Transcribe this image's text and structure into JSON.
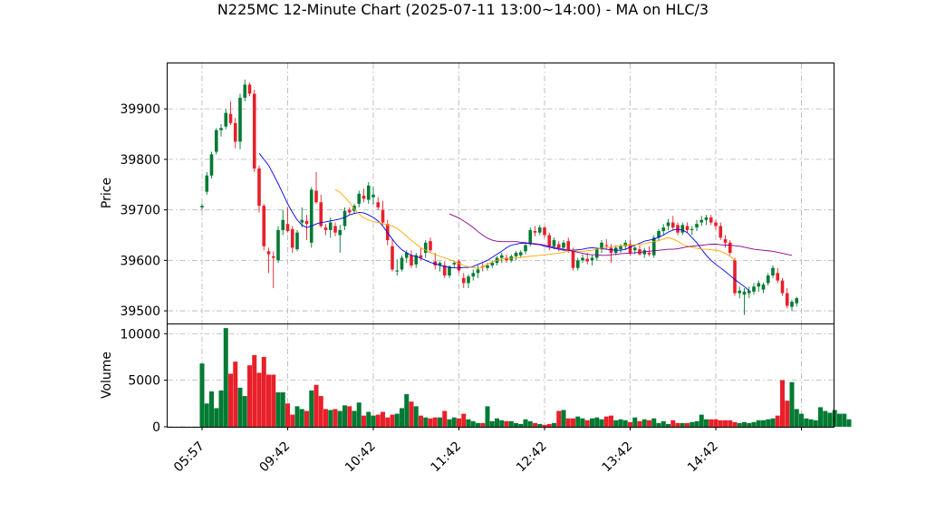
{
  "chart_data": {
    "type": "candlestick",
    "title": "N225MC 12-Minute Chart (2025-07-11 13:00~14:00) - MA on HLC/3",
    "price_panel": {
      "ylabel": "Price",
      "ylim": [
        39475,
        39990
      ],
      "yticks": [
        39500,
        39600,
        39700,
        39800,
        39900
      ]
    },
    "volume_panel": {
      "ylabel": "Volume",
      "ylim": [
        0,
        11000
      ],
      "yticks": [
        0,
        5000,
        10000
      ],
      "yticklabels": [
        "0",
        "5000",
        "10000"
      ]
    },
    "x_ticks": [
      {
        "label": "05:57",
        "index": 0
      },
      {
        "label": "09:42",
        "index": 18
      },
      {
        "label": "10:42",
        "index": 36
      },
      {
        "label": "11:42",
        "index": 54
      },
      {
        "label": "12:42",
        "index": 72
      },
      {
        "label": "13:42",
        "index": 90
      },
      {
        "label": "14:42",
        "index": 108
      },
      {
        "label": "",
        "index": 126
      }
    ],
    "colors": {
      "up": "#007a33",
      "down": "#e8202a",
      "ma_short": "#0000ee",
      "ma_mid": "#ffa500",
      "ma_long": "#8b008b"
    },
    "candles_note": "OHLC per 12-minute bar, approximate readings",
    "ohlc": [
      [
        39705,
        39712,
        39700,
        39708
      ],
      [
        39736,
        39775,
        39730,
        39768
      ],
      [
        39768,
        39815,
        39762,
        39810
      ],
      [
        39815,
        39862,
        39810,
        39858
      ],
      [
        39858,
        39870,
        39845,
        39862
      ],
      [
        39865,
        39900,
        39860,
        39892
      ],
      [
        39890,
        39915,
        39868,
        39872
      ],
      [
        39872,
        39882,
        39822,
        39835
      ],
      [
        39835,
        39930,
        39820,
        39922
      ],
      [
        39922,
        39958,
        39915,
        39948
      ],
      [
        39948,
        39952,
        39925,
        39930
      ],
      [
        39930,
        39938,
        39775,
        39782
      ],
      [
        39782,
        39788,
        39695,
        39708
      ],
      [
        39708,
        39712,
        39620,
        39628
      ],
      [
        39618,
        39625,
        39575,
        39612
      ],
      [
        39608,
        39618,
        39545,
        39605
      ],
      [
        39600,
        39668,
        39595,
        39660
      ],
      [
        39660,
        39700,
        39650,
        39680
      ],
      [
        39672,
        39705,
        39655,
        39658
      ],
      [
        39662,
        39668,
        39615,
        39625
      ],
      [
        39622,
        39660,
        39618,
        39655
      ],
      [
        39675,
        39705,
        39665,
        39680
      ],
      [
        39678,
        39690,
        39640,
        39672
      ],
      [
        39635,
        39745,
        39625,
        39740
      ],
      [
        39738,
        39775,
        39712,
        39715
      ],
      [
        39715,
        39730,
        39665,
        39668
      ],
      [
        39665,
        39672,
        39650,
        39660
      ],
      [
        39660,
        39685,
        39645,
        39675
      ],
      [
        39668,
        39675,
        39648,
        39655
      ],
      [
        39650,
        39670,
        39615,
        39660
      ],
      [
        39668,
        39705,
        39660,
        39698
      ],
      [
        39700,
        39705,
        39690,
        39695
      ],
      [
        39698,
        39712,
        39692,
        39708
      ],
      [
        39712,
        39738,
        39705,
        39732
      ],
      [
        39728,
        39742,
        39715,
        39722
      ],
      [
        39720,
        39755,
        39712,
        39748
      ],
      [
        39725,
        39745,
        39710,
        39730
      ],
      [
        39715,
        39725,
        39700,
        39705
      ],
      [
        39700,
        39718,
        39670,
        39675
      ],
      [
        39672,
        39680,
        39630,
        39640
      ],
      [
        39628,
        39642,
        39578,
        39582
      ],
      [
        39578,
        39602,
        39570,
        39580
      ],
      [
        39582,
        39610,
        39578,
        39605
      ],
      [
        39605,
        39620,
        39595,
        39615
      ],
      [
        39610,
        39620,
        39585,
        39590
      ],
      [
        39592,
        39615,
        39585,
        39610
      ],
      [
        39610,
        39625,
        39600,
        39605
      ],
      [
        39615,
        39640,
        39605,
        39635
      ],
      [
        39638,
        39645,
        39615,
        39620
      ],
      [
        39598,
        39615,
        39582,
        39590
      ],
      [
        39590,
        39598,
        39578,
        39595
      ],
      [
        39590,
        39598,
        39565,
        39570
      ],
      [
        39570,
        39590,
        39565,
        39588
      ],
      [
        39592,
        39598,
        39585,
        39595
      ],
      [
        39598,
        39602,
        39575,
        39580
      ],
      [
        39565,
        39575,
        39545,
        39555
      ],
      [
        39555,
        39572,
        39545,
        39568
      ],
      [
        39568,
        39582,
        39560,
        39575
      ],
      [
        39575,
        39590,
        39565,
        39582
      ],
      [
        39588,
        39595,
        39578,
        39586
      ],
      [
        39585,
        39595,
        39580,
        39590
      ],
      [
        39590,
        39600,
        39585,
        39595
      ],
      [
        39595,
        39608,
        39590,
        39605
      ],
      [
        39605,
        39615,
        39595,
        39610
      ],
      [
        39605,
        39612,
        39595,
        39600
      ],
      [
        39600,
        39612,
        39596,
        39608
      ],
      [
        39608,
        39618,
        39600,
        39615
      ],
      [
        39610,
        39620,
        39605,
        39616
      ],
      [
        39618,
        39635,
        39612,
        39630
      ],
      [
        39632,
        39665,
        39628,
        39660
      ],
      [
        39658,
        39668,
        39648,
        39655
      ],
      [
        39655,
        39670,
        39650,
        39665
      ],
      [
        39665,
        39668,
        39645,
        39650
      ],
      [
        39650,
        39655,
        39620,
        39628
      ],
      [
        39628,
        39645,
        39622,
        39640
      ],
      [
        39632,
        39638,
        39618,
        39625
      ],
      [
        39625,
        39640,
        39620,
        39635
      ],
      [
        39638,
        39645,
        39615,
        39620
      ],
      [
        39620,
        39625,
        39580,
        39585
      ],
      [
        39585,
        39605,
        39580,
        39600
      ],
      [
        39600,
        39612,
        39595,
        39605
      ],
      [
        39603,
        39615,
        39592,
        39598
      ],
      [
        39600,
        39610,
        39590,
        39605
      ],
      [
        39605,
        39625,
        39600,
        39622
      ],
      [
        39622,
        39640,
        39615,
        39635
      ],
      [
        39630,
        39642,
        39622,
        39628
      ],
      [
        39625,
        39632,
        39595,
        39615
      ],
      [
        39615,
        39630,
        39610,
        39625
      ],
      [
        39622,
        39632,
        39615,
        39628
      ],
      [
        39628,
        39640,
        39620,
        39635
      ],
      [
        39632,
        39640,
        39610,
        39615
      ],
      [
        39620,
        39628,
        39612,
        39625
      ],
      [
        39622,
        39630,
        39610,
        39612
      ],
      [
        39612,
        39625,
        39605,
        39620
      ],
      [
        39615,
        39628,
        39608,
        39612
      ],
      [
        39610,
        39650,
        39605,
        39645
      ],
      [
        39645,
        39662,
        39638,
        39658
      ],
      [
        39658,
        39672,
        39650,
        39665
      ],
      [
        39668,
        39682,
        39660,
        39675
      ],
      [
        39675,
        39688,
        39660,
        39665
      ],
      [
        39670,
        39675,
        39650,
        39655
      ],
      [
        39655,
        39675,
        39650,
        39670
      ],
      [
        39668,
        39675,
        39655,
        39660
      ],
      [
        39660,
        39668,
        39650,
        39662
      ],
      [
        39665,
        39680,
        39658,
        39672
      ],
      [
        39675,
        39688,
        39668,
        39680
      ],
      [
        39680,
        39690,
        39670,
        39685
      ],
      [
        39685,
        39690,
        39670,
        39675
      ],
      [
        39675,
        39680,
        39660,
        39668
      ],
      [
        39668,
        39675,
        39640,
        39645
      ],
      [
        39642,
        39650,
        39625,
        39635
      ],
      [
        39635,
        39640,
        39610,
        39615
      ],
      [
        39600,
        39605,
        39530,
        39535
      ],
      [
        39535,
        39548,
        39525,
        39540
      ],
      [
        39532,
        39545,
        39492,
        39538
      ],
      [
        39535,
        39548,
        39525,
        39540
      ],
      [
        39538,
        39555,
        39532,
        39548
      ],
      [
        39548,
        39560,
        39538,
        39555
      ],
      [
        39542,
        39556,
        39535,
        39552
      ],
      [
        39555,
        39575,
        39550,
        39570
      ],
      [
        39570,
        39590,
        39565,
        39585
      ],
      [
        39575,
        39585,
        39555,
        39560
      ],
      [
        39560,
        39565,
        39530,
        39535
      ],
      [
        39535,
        39545,
        39505,
        39510
      ],
      [
        39508,
        39522,
        39500,
        39518
      ],
      [
        39515,
        39528,
        39508,
        39525
      ]
    ],
    "volume": [
      6800,
      2500,
      3800,
      2000,
      3900,
      10600,
      5700,
      7000,
      4200,
      3300,
      6600,
      7700,
      5800,
      7500,
      5600,
      5600,
      3700,
      3700,
      2500,
      1300,
      2200,
      1900,
      1700,
      3900,
      4500,
      3300,
      1900,
      1800,
      1900,
      1700,
      2300,
      2200,
      1700,
      2600,
      1200,
      1600,
      1200,
      1300,
      1600,
      1000,
      1300,
      1400,
      2000,
      3500,
      2700,
      2200,
      1200,
      1000,
      900,
      1000,
      1000,
      1700,
      800,
      1000,
      900,
      1400,
      800,
      600,
      400,
      400,
      2200,
      600,
      900,
      700,
      600,
      600,
      400,
      300,
      800,
      600,
      400,
      300,
      200,
      300,
      400,
      1700,
      1800,
      900,
      900,
      1100,
      900,
      700,
      900,
      1000,
      800,
      1100,
      1200,
      700,
      800,
      700,
      500,
      1000,
      600,
      800,
      700,
      900,
      400,
      600,
      300,
      700,
      400,
      400,
      400,
      500,
      600,
      1300,
      800,
      800,
      800,
      700,
      700,
      700,
      500,
      400,
      500,
      400,
      500,
      700,
      700,
      800,
      900,
      1200,
      5000,
      2800,
      4800,
      1900,
      1400,
      900,
      800,
      700,
      2100,
      1700,
      1500,
      1800,
      1400,
      1400,
      800
    ],
    "moving_averages": [
      {
        "name": "short",
        "start": 12,
        "values": [
          39812,
          39800,
          39788,
          39770,
          39752,
          39732,
          39712,
          39695,
          39680,
          39670,
          39665,
          39668,
          39672,
          39675,
          39676,
          39678,
          39680,
          39682,
          39685,
          39690,
          39693,
          39695,
          39694,
          39690,
          39685,
          39678,
          39668,
          39655,
          39642,
          39630,
          39621,
          39615,
          39610,
          39608,
          39604,
          39600,
          39596,
          39593,
          39590,
          39588,
          39586,
          39585,
          39585,
          39586,
          39586,
          39588,
          39592,
          39596,
          39600,
          39606,
          39612,
          39618,
          39625,
          39630,
          39632,
          39634,
          39634,
          39633,
          39632,
          39631,
          39628,
          39626,
          39624,
          39622,
          39620,
          39620,
          39620,
          39621,
          39622,
          39624,
          39625,
          39624,
          39623,
          39622,
          39621,
          39620,
          39620,
          39622,
          39626,
          39630,
          39634,
          39638,
          39640,
          39642,
          39646,
          39650,
          39656,
          39660,
          39662,
          39660,
          39655,
          39645,
          39635,
          39622,
          39610,
          39600,
          39592,
          39585,
          39578,
          39570,
          39562,
          39555,
          39548,
          39540
        ]
      },
      {
        "name": "mid",
        "start": 28,
        "values": [
          39740,
          39735,
          39725,
          39715,
          39702,
          39692,
          39684,
          39680,
          39677,
          39675,
          39673,
          39670,
          39668,
          39663,
          39656,
          39648,
          39640,
          39632,
          39625,
          39620,
          39615,
          39612,
          39608,
          39605,
          39602,
          39598,
          39594,
          39590,
          39587,
          39586,
          39584,
          39587,
          39592,
          39597,
          39600,
          39603,
          39604,
          39604,
          39605,
          39606,
          39607,
          39608,
          39609,
          39610,
          39611,
          39612,
          39613,
          39614,
          39616,
          39618,
          39619,
          39618,
          39618,
          39619,
          39620,
          39622,
          39624,
          39625,
          39627,
          39628,
          39629,
          39630,
          39630,
          39631,
          39632,
          39633,
          39635,
          39637,
          39639,
          39642,
          39645,
          39642,
          39638,
          39632,
          39628,
          39626,
          39624,
          39622,
          39622,
          39621,
          39620,
          39618,
          39614,
          39608,
          39600
        ]
      },
      {
        "name": "long",
        "start": 52,
        "values": [
          39692,
          39688,
          39684,
          39678,
          39672,
          39665,
          39657,
          39650,
          39644,
          39640,
          39638,
          39637,
          39637,
          39637,
          39637,
          39636,
          39635,
          39634,
          39633,
          39632,
          39630,
          39628,
          39626,
          39624,
          39622,
          39620,
          39618,
          39616,
          39614,
          39612,
          39611,
          39611,
          39610,
          39610,
          39611,
          39612,
          39613,
          39614,
          39614,
          39615,
          39616,
          39617,
          39618,
          39619,
          39620,
          39621,
          39622,
          39622,
          39623,
          39625,
          39627,
          39628,
          39629,
          39630,
          39631,
          39632,
          39632,
          39631,
          39630,
          39630,
          39629,
          39628,
          39626,
          39624,
          39622,
          39621,
          39620,
          39619,
          39618,
          39616,
          39614,
          39612,
          39610
        ]
      }
    ]
  }
}
